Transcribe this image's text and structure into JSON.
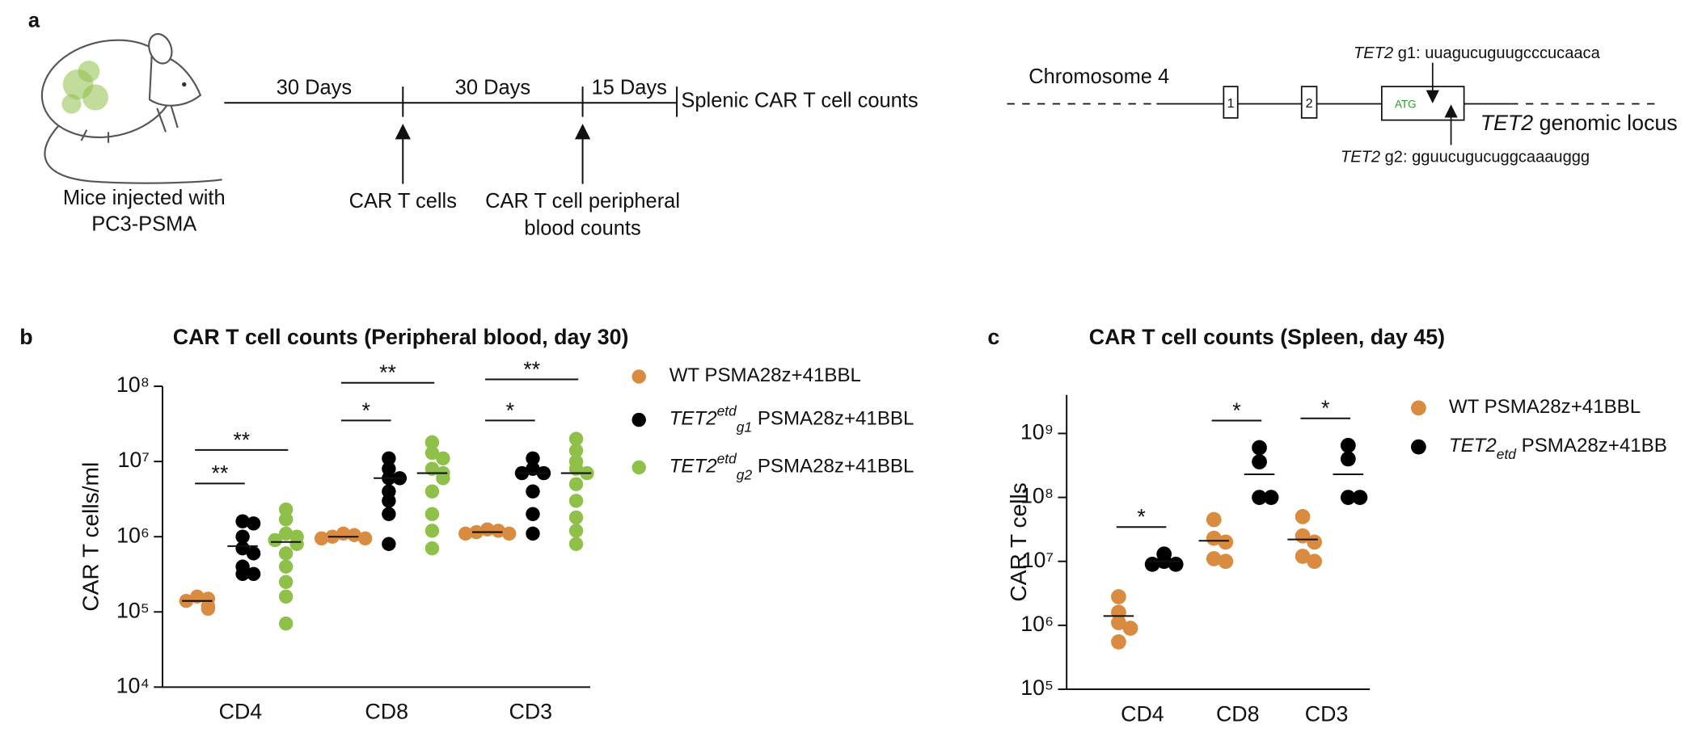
{
  "panel_a": {
    "label": "a",
    "mouse_caption": [
      "Mice injected with",
      "PC3-PSMA"
    ],
    "timeline": {
      "intervals": [
        "30 Days",
        "30 Days",
        "15 Days"
      ],
      "end_label": "Splenic CAR T cell counts",
      "events": [
        [
          "CAR T cells"
        ],
        [
          "CAR T cell peripheral",
          "blood counts"
        ]
      ]
    },
    "locus": {
      "chromosome": "Chromosome 4",
      "exons": [
        "1",
        "2"
      ],
      "start_codon": "ATG",
      "guides": [
        {
          "gene": "TET2",
          "sequence": " g1: uuagucuguugcccucaaca"
        },
        {
          "gene": "TET2",
          "sequence": " g2: gguucugucuggcaaauggg"
        }
      ],
      "name": {
        "gene": "TET2",
        "text": " genomic locus"
      }
    }
  },
  "chart_data": [
    {
      "type": "dot",
      "panel": "b",
      "title": "CAR T cell counts (Peripheral blood, day 30)",
      "y_label": "CAR T cells/ml",
      "yscale": "log",
      "ylim": [
        10000,
        100000000
      ],
      "yticks": [
        {
          "value": 10000,
          "label": "10⁴"
        },
        {
          "value": 100000,
          "label": "10⁵"
        },
        {
          "value": 1000000,
          "label": "10⁶"
        },
        {
          "value": 10000000,
          "label": "10⁷"
        },
        {
          "value": 100000000,
          "label": "10⁸"
        }
      ],
      "categories": [
        "CD4",
        "CD8",
        "CD3"
      ],
      "series": [
        {
          "name": [
            {
              "text": "WT PSMA28z+41BBL"
            }
          ],
          "color": "#d98b40",
          "values": [
            [
              160000,
              150000,
              140000,
              120000,
              110000
            ],
            [
              1100000,
              1050000,
              1000000,
              950000,
              950000
            ],
            [
              1250000,
              1200000,
              1150000,
              1100000,
              1100000
            ]
          ],
          "medians": [
            140000,
            1000000,
            1150000
          ]
        },
        {
          "name": [
            {
              "text": "TET2",
              "style": "italic"
            },
            {
              "text": "etd",
              "style": "italic-sup"
            },
            {
              "text": "g1",
              "style": "italic-sub"
            },
            {
              "text": " PSMA28z+41BBL"
            }
          ],
          "color": "#000000",
          "values": [
            [
              1600000,
              1500000,
              1000000,
              700000,
              600000,
              400000,
              320000,
              320000
            ],
            [
              11000000,
              8000000,
              6000000,
              6000000,
              4000000,
              3000000,
              2000000,
              800000
            ],
            [
              11000000,
              8000000,
              7000000,
              7000000,
              4000000,
              2000000,
              1100000
            ]
          ],
          "medians": [
            750000,
            6000000,
            7000000
          ]
        },
        {
          "name": [
            {
              "text": "TET2",
              "style": "italic"
            },
            {
              "text": "etd",
              "style": "italic-sup"
            },
            {
              "text": "g2",
              "style": "italic-sub"
            },
            {
              "text": " PSMA28z+41BBL"
            }
          ],
          "color": "#8fc04a",
          "values": [
            [
              2300000,
              1700000,
              1100000,
              1000000,
              900000,
              800000,
              600000,
              400000,
              250000,
              160000,
              70000
            ],
            [
              18000000,
              13000000,
              11000000,
              8000000,
              7000000,
              6000000,
              4000000,
              2000000,
              1200000,
              700000
            ],
            [
              20000000,
              14000000,
              10000000,
              8000000,
              7000000,
              5000000,
              3000000,
              1800000,
              1200000,
              800000
            ]
          ],
          "medians": [
            850000,
            7000000,
            7000000
          ]
        }
      ],
      "brackets": [
        {
          "category": 0,
          "series": [
            0,
            1
          ],
          "label": "**"
        },
        {
          "category": 0,
          "series": [
            0,
            2
          ],
          "label": "**"
        },
        {
          "category": 1,
          "series": [
            0,
            1
          ],
          "label": "*"
        },
        {
          "category": 1,
          "series": [
            0,
            2
          ],
          "label": "**"
        },
        {
          "category": 2,
          "series": [
            0,
            1
          ],
          "label": "*"
        },
        {
          "category": 2,
          "series": [
            0,
            2
          ],
          "label": "**"
        }
      ]
    },
    {
      "type": "dot",
      "panel": "c",
      "title": "CAR T cell counts (Spleen, day 45)",
      "y_label": "CAR T cells",
      "yscale": "log",
      "ylim": [
        100000,
        4000000000
      ],
      "yticks": [
        {
          "value": 100000,
          "label": "10⁵"
        },
        {
          "value": 1000000,
          "label": "10⁶"
        },
        {
          "value": 10000000,
          "label": "10⁷"
        },
        {
          "value": 100000000,
          "label": "10⁸"
        },
        {
          "value": 1000000000,
          "label": "10⁹"
        }
      ],
      "categories": [
        "CD4",
        "CD8",
        "CD3"
      ],
      "series": [
        {
          "name": [
            {
              "text": "WT PSMA28z+41BBL"
            }
          ],
          "color": "#d98b40",
          "values": [
            [
              2800000,
              1600000,
              1100000,
              900000,
              550000
            ],
            [
              45000000,
              23000000,
              20000000,
              11000000,
              10000000
            ],
            [
              50000000,
              25000000,
              20000000,
              12000000,
              10000000
            ]
          ],
          "medians": [
            1400000,
            21000000,
            22000000
          ]
        },
        {
          "name": [
            {
              "text": "TET2",
              "style": "italic"
            },
            {
              "text": "etd",
              "style": "italic-sub"
            },
            {
              "text": " PSMA28z+41BB"
            }
          ],
          "color": "#000000",
          "values": [
            [
              13000000,
              10000000,
              9000000,
              9000000
            ],
            [
              600000000,
              360000000,
              100000000,
              100000000
            ],
            [
              650000000,
              400000000,
              100000000,
              100000000
            ]
          ],
          "medians": [
            10000000,
            230000000,
            230000000
          ]
        }
      ],
      "brackets": [
        {
          "category": 0,
          "series": [
            0,
            1
          ],
          "label": "*"
        },
        {
          "category": 1,
          "series": [
            0,
            1
          ],
          "label": "*"
        },
        {
          "category": 2,
          "series": [
            0,
            1
          ],
          "label": "*"
        }
      ]
    }
  ]
}
